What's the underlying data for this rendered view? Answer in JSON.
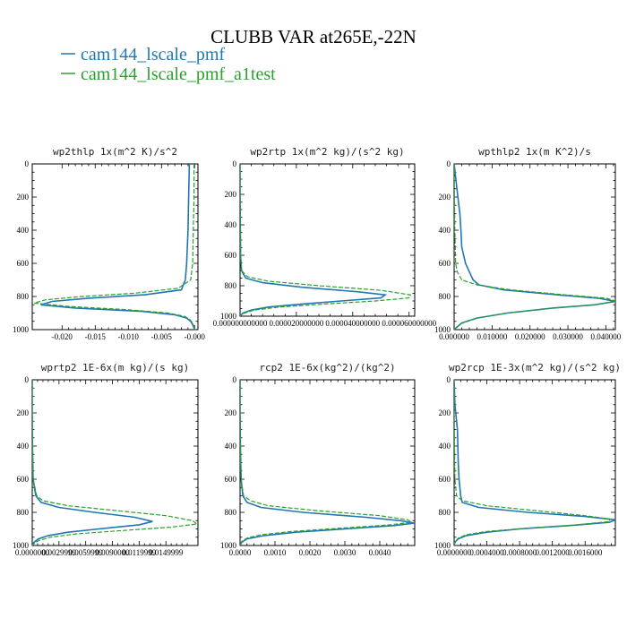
{
  "title": "CLUBB VAR at265E,-22N",
  "legend": [
    {
      "label": "cam144_lscale_pmf",
      "color": "#1f77b4",
      "dash": false
    },
    {
      "label": "cam144_lscale_pmf_a1test",
      "color": "#2ca02c",
      "dash": true
    }
  ],
  "chart_data": [
    {
      "type": "line",
      "title": "wp2thlp  1x(m^2 K)/s^2",
      "ylim": [
        1000,
        0
      ],
      "yticks": [
        0,
        200,
        400,
        600,
        800,
        1000
      ],
      "xlim": [
        -0.0245,
        0.0005
      ],
      "xticks": [
        -0.02,
        -0.015,
        -0.01,
        -0.005,
        -0.0
      ],
      "xticklabels": [
        "-0.020",
        "-0.015",
        "-0.010",
        "-0.005",
        "-0.000"
      ],
      "series": [
        {
          "name": "cam144_lscale_pmf",
          "y": [
            0,
            200,
            400,
            600,
            700,
            760,
            790,
            810,
            830,
            850,
            870,
            890,
            910,
            930,
            950,
            970,
            990,
            1000
          ],
          "x": [
            -0.0008,
            -0.0009,
            -0.001,
            -0.0012,
            -0.0014,
            -0.002,
            -0.0075,
            -0.016,
            -0.0215,
            -0.0232,
            -0.018,
            -0.008,
            -0.003,
            -0.0012,
            -0.0006,
            -0.0003,
            -0.0001,
            0.0
          ]
        },
        {
          "name": "cam144_lscale_pmf_a1test",
          "y": [
            0,
            200,
            400,
            600,
            700,
            750,
            780,
            800,
            820,
            840,
            860,
            880,
            900,
            920,
            940,
            960,
            980,
            1000
          ],
          "x": [
            -0.0001,
            -0.0001,
            -0.0002,
            -0.0003,
            -0.0006,
            -0.0025,
            -0.009,
            -0.017,
            -0.0225,
            -0.0242,
            -0.019,
            -0.01,
            -0.004,
            -0.0015,
            -0.0007,
            -0.0003,
            -0.0001,
            0.0
          ]
        }
      ]
    },
    {
      "type": "line",
      "title": "wp2rtp  1x(m^2 kg)/(s^2 kg)",
      "ylim": [
        1000,
        0
      ],
      "yticks": [
        0,
        200,
        400,
        600,
        800,
        1000
      ],
      "xlim": [
        0,
        6.2e-05
      ],
      "xticks": [
        0,
        2e-05,
        4e-05,
        6e-05
      ],
      "xticklabels": [
        "0.000000000000",
        "0.000020000000",
        "0.000040000000",
        "0.000060000000"
      ],
      "series": [
        {
          "name": "cam144_lscale_pmf",
          "y": [
            0,
            200,
            400,
            600,
            700,
            750,
            780,
            810,
            840,
            860,
            880,
            900,
            920,
            940,
            960,
            980,
            1000
          ],
          "x": [
            0,
            0,
            1e-07,
            2e-07,
            5e-07,
            2e-06,
            8e-06,
            2.2e-05,
            4.2e-05,
            5.15e-05,
            5e-05,
            3.6e-05,
            2.2e-05,
            1e-05,
            4e-06,
            1e-06,
            0.0
          ]
        },
        {
          "name": "cam144_lscale_pmf_a1test",
          "y": [
            0,
            200,
            400,
            600,
            700,
            740,
            770,
            800,
            830,
            860,
            880,
            900,
            920,
            940,
            960,
            980,
            1000
          ],
          "x": [
            0,
            0,
            1e-07,
            2e-07,
            6e-07,
            2.5e-06,
            1e-05,
            2.8e-05,
            5e-05,
            6.05e-05,
            6e-05,
            4.8e-05,
            3e-05,
            1.4e-05,
            5e-06,
            1.5e-06,
            0.0
          ]
        }
      ]
    },
    {
      "type": "line",
      "title": "wpthlp2  1x(m K^2)/s",
      "ylim": [
        1000,
        0
      ],
      "yticks": [
        0,
        200,
        400,
        600,
        800,
        1000
      ],
      "xlim": [
        0,
        0.0425
      ],
      "xticks": [
        0,
        0.01,
        0.02,
        0.03,
        0.04
      ],
      "xticklabels": [
        "0.000000",
        "0.010000",
        "0.020000",
        "0.030000",
        "0.040000"
      ],
      "series": [
        {
          "name": "cam144_lscale_pmf",
          "y": [
            0,
            200,
            300,
            400,
            500,
            600,
            650,
            700,
            730,
            760,
            790,
            810,
            830,
            850,
            870,
            900,
            930,
            960,
            990,
            1000
          ],
          "x": [
            0.0,
            0.001,
            0.0015,
            0.0018,
            0.002,
            0.003,
            0.004,
            0.005,
            0.0065,
            0.013,
            0.027,
            0.038,
            0.0425,
            0.037,
            0.026,
            0.014,
            0.006,
            0.002,
            0.0005,
            0.0
          ]
        },
        {
          "name": "cam144_lscale_pmf_a1test",
          "y": [
            0,
            200,
            400,
            600,
            650,
            700,
            730,
            760,
            790,
            810,
            830,
            850,
            870,
            900,
            930,
            960,
            990,
            1000
          ],
          "x": [
            0.0,
            0.0001,
            0.0002,
            0.0004,
            0.0008,
            0.002,
            0.006,
            0.015,
            0.029,
            0.04,
            0.043,
            0.037,
            0.026,
            0.014,
            0.006,
            0.002,
            0.0005,
            0.0
          ]
        }
      ]
    },
    {
      "type": "line",
      "title": "wprtp2  1E-6x(m kg)/(s kg)",
      "ylim": [
        1000,
        0
      ],
      "yticks": [
        0,
        200,
        400,
        600,
        800,
        1000
      ],
      "xlim": [
        0,
        0.0186
      ],
      "xticks": [
        0,
        0.003,
        0.006,
        0.009,
        0.012,
        0.015
      ],
      "xticklabels": [
        "0.0000000",
        "0.0029999",
        "0.0059999",
        "0.0090000",
        "0.0119999",
        "0.0149999"
      ],
      "series": [
        {
          "name": "cam144_lscale_pmf",
          "y": [
            0,
            200,
            400,
            600,
            700,
            740,
            770,
            800,
            830,
            855,
            875,
            900,
            920,
            940,
            960,
            980,
            1000
          ],
          "x": [
            0,
            0,
            3e-05,
            0.0001,
            0.0004,
            0.001,
            0.003,
            0.007,
            0.0115,
            0.0135,
            0.012,
            0.0075,
            0.004,
            0.0018,
            0.0007,
            0.0002,
            0.0
          ]
        },
        {
          "name": "cam144_lscale_pmf_a1test",
          "y": [
            0,
            200,
            400,
            600,
            700,
            730,
            760,
            790,
            820,
            850,
            870,
            890,
            910,
            930,
            950,
            970,
            990,
            1000
          ],
          "x": [
            0,
            0,
            3e-05,
            0.0001,
            0.0005,
            0.0012,
            0.004,
            0.0095,
            0.015,
            0.018,
            0.0185,
            0.0155,
            0.01,
            0.005,
            0.002,
            0.0007,
            0.0002,
            0.0
          ]
        }
      ]
    },
    {
      "type": "line",
      "title": "rcp2  1E-6x(kg^2)/(kg^2)",
      "ylim": [
        1000,
        0
      ],
      "yticks": [
        0,
        200,
        400,
        600,
        800,
        1000
      ],
      "xlim": [
        0,
        0.005
      ],
      "xticks": [
        0,
        0.001,
        0.002,
        0.003,
        0.004
      ],
      "xticklabels": [
        "0.0000",
        "0.0010",
        "0.0020",
        "0.0030",
        "0.0040"
      ],
      "series": [
        {
          "name": "cam144_lscale_pmf",
          "y": [
            0,
            200,
            400,
            600,
            700,
            740,
            770,
            800,
            830,
            850,
            865,
            880,
            900,
            920,
            940,
            960,
            980,
            1000
          ],
          "x": [
            0,
            0,
            1e-05,
            3e-05,
            8e-05,
            0.0002,
            0.0006,
            0.0018,
            0.0036,
            0.0046,
            0.005,
            0.0044,
            0.003,
            0.0016,
            0.0007,
            0.0002,
            5e-05,
            0.0
          ]
        },
        {
          "name": "cam144_lscale_pmf_a1test",
          "y": [
            0,
            200,
            400,
            600,
            700,
            730,
            760,
            790,
            820,
            845,
            860,
            875,
            895,
            915,
            935,
            955,
            975,
            1000
          ],
          "x": [
            0,
            0,
            1e-05,
            3e-05,
            0.0001,
            0.0003,
            0.0008,
            0.0022,
            0.004,
            0.0048,
            0.0049,
            0.0043,
            0.0029,
            0.0015,
            0.0006,
            0.0002,
            5e-05,
            0.0
          ]
        }
      ]
    },
    {
      "type": "line",
      "title": "wp2rcp  1E-3x(m^2 kg)/(s^2 kg)",
      "ylim": [
        1000,
        0
      ],
      "yticks": [
        0,
        200,
        400,
        600,
        800,
        1000
      ],
      "xlim": [
        0,
        0.00197
      ],
      "xticks": [
        0,
        0.0004,
        0.0008,
        0.0012,
        0.0016
      ],
      "xticklabels": [
        "0.0000000",
        "0.0004000",
        "0.0008000",
        "0.0012000",
        "0.0016000"
      ],
      "series": [
        {
          "name": "cam144_lscale_pmf",
          "y": [
            0,
            150,
            200,
            300,
            500,
            600,
            700,
            740,
            770,
            800,
            825,
            845,
            860,
            880,
            900,
            920,
            940,
            960,
            980,
            1000
          ],
          "x": [
            0,
            1e-05,
            2e-05,
            4e-05,
            5e-05,
            6e-05,
            8e-05,
            0.0001,
            0.0003,
            0.0009,
            0.0016,
            0.00197,
            0.0019,
            0.0014,
            0.0008,
            0.0004,
            0.00015,
            5e-05,
            1e-05,
            0.0
          ]
        },
        {
          "name": "cam144_lscale_pmf_a1test",
          "y": [
            0,
            200,
            400,
            600,
            700,
            730,
            760,
            790,
            820,
            840,
            855,
            875,
            895,
            915,
            935,
            955,
            980,
            1000
          ],
          "x": [
            0,
            0,
            5e-06,
            1e-05,
            3e-05,
            0.0001,
            0.0004,
            0.001,
            0.0016,
            0.0019,
            0.0019,
            0.0015,
            0.0009,
            0.0004,
            0.00015,
            5e-05,
            1e-05,
            0.0
          ]
        }
      ]
    }
  ]
}
